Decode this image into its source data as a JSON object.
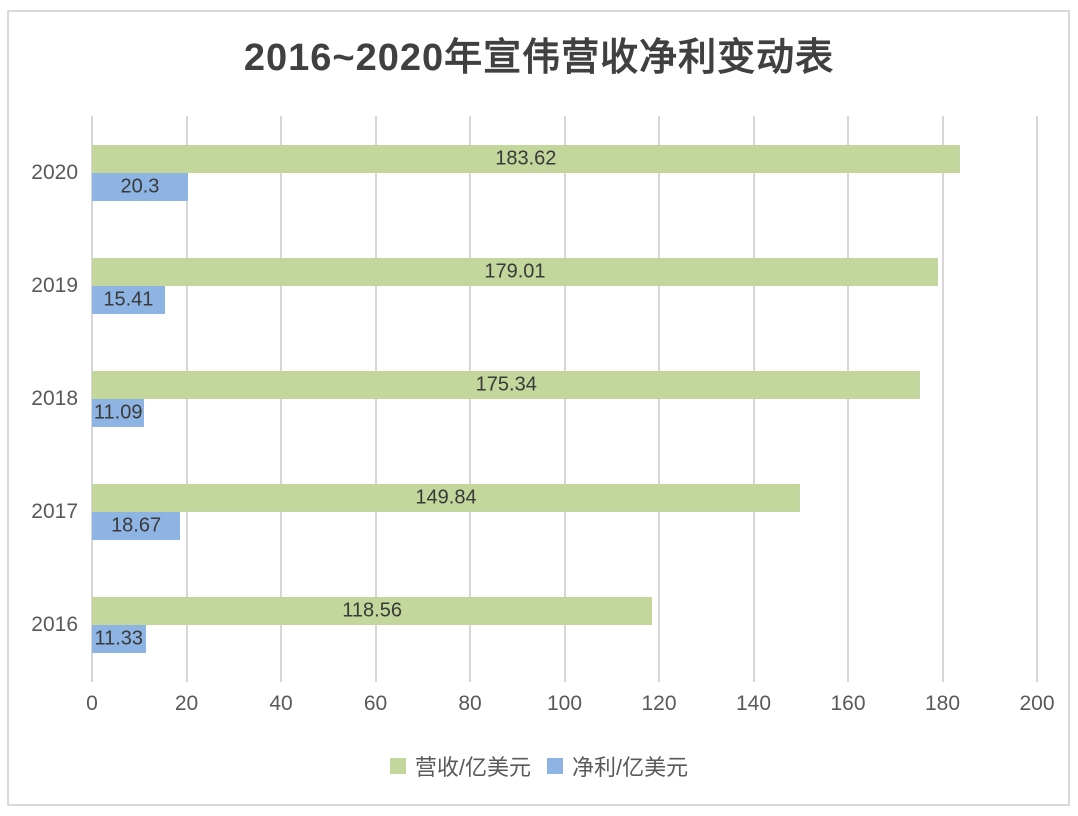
{
  "title": "2016~2020年宣伟营收净利变动表",
  "chart_data": {
    "type": "bar",
    "orientation": "horizontal",
    "title": "2016~2020年宣伟营收净利变动表",
    "categories": [
      "2020",
      "2019",
      "2018",
      "2017",
      "2016"
    ],
    "series": [
      {
        "name": "营收/亿美元",
        "color": "#c3d69b",
        "values": [
          183.62,
          179.01,
          175.34,
          149.84,
          118.56
        ]
      },
      {
        "name": "净利/亿美元",
        "color": "#8db4e2",
        "values": [
          20.3,
          15.41,
          11.09,
          18.67,
          11.33
        ]
      }
    ],
    "xlim": [
      0,
      200
    ],
    "x_ticks": [
      0,
      20,
      40,
      60,
      80,
      100,
      120,
      140,
      160,
      180,
      200
    ],
    "grid": "vertical",
    "data_labels": "center",
    "legend_position": "bottom"
  },
  "colors": {
    "revenue_bar": "#c3d69b",
    "profit_bar": "#8db4e2",
    "gridline": "#d6d6d6",
    "frame_border": "#d9d9d9",
    "title_text": "#404040",
    "axis_text": "#595959",
    "data_label_text": "#3a3a3a",
    "background": "#ffffff"
  }
}
